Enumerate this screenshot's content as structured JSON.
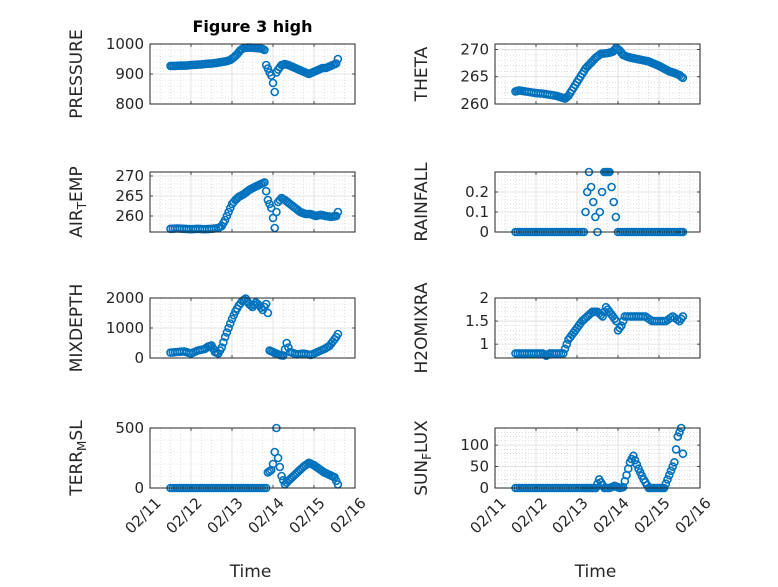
{
  "figure": {
    "title": "Figure 3 high",
    "marker_color": "#0072BD",
    "axes_color": "#262626",
    "grid_color": "#c8c8c8",
    "x_tick_labels": [
      "02/11",
      "02/12",
      "02/13",
      "02/14",
      "02/15",
      "02/16"
    ],
    "xlabel": "Time"
  },
  "chart_data": [
    {
      "type": "scatter",
      "title": "Figure 3 high",
      "ylabel": "PRESSURE",
      "ylim": [
        800,
        1000
      ],
      "yticks": [
        800,
        900,
        1000
      ],
      "xlim": [
        "02/11",
        "02/16"
      ],
      "xlabel": "",
      "grid": "major+minor",
      "series": [
        {
          "x": [
            "02/11 12:00",
            "02/11 15:00",
            "02/11 18:00",
            "02/11 21:00",
            "02/12 00:00",
            "02/12 03:00",
            "02/12 06:00",
            "02/12 09:00",
            "02/12 12:00",
            "02/12 15:00",
            "02/12 18:00",
            "02/12 21:00",
            "02/12 23:00",
            "02/13 01:00",
            "02/13 03:00",
            "02/13 05:00",
            "02/13 07:00",
            "02/13 09:00",
            "02/13 11:00",
            "02/13 13:00",
            "02/13 15:00",
            "02/13 17:00",
            "02/13 18:00",
            "02/13 19:00",
            "02/13 20:00",
            "02/13 21:00",
            "02/13 22:00",
            "02/13 23:00",
            "02/14 00:00",
            "02/14 01:00",
            "02/14 02:00",
            "02/14 03:00",
            "02/14 05:00",
            "02/14 07:00",
            "02/14 09:00",
            "02/14 11:00",
            "02/14 13:00",
            "02/14 15:00",
            "02/14 17:00",
            "02/14 19:00",
            "02/14 21:00",
            "02/14 23:00",
            "02/15 01:00",
            "02/15 03:00",
            "02/15 05:00",
            "02/15 07:00",
            "02/15 09:00",
            "02/15 11:00",
            "02/15 13:00",
            "02/15 14:00"
          ],
          "y": [
            927,
            927,
            928,
            928,
            930,
            931,
            932,
            934,
            935,
            937,
            940,
            943,
            947,
            955,
            966,
            980,
            987,
            988,
            988,
            987,
            986,
            985,
            983,
            980,
            930,
            918,
            905,
            895,
            870,
            840,
            905,
            915,
            930,
            933,
            930,
            925,
            920,
            915,
            910,
            905,
            900,
            905,
            910,
            915,
            920,
            920,
            925,
            930,
            935,
            950
          ]
        }
      ]
    },
    {
      "type": "scatter",
      "ylabel": "THETA",
      "ylim": [
        260,
        271
      ],
      "yticks": [
        260,
        265,
        270
      ],
      "xlim": [
        "02/11",
        "02/16"
      ],
      "grid": "major+minor",
      "series": [
        {
          "x": [
            "02/11 12:00",
            "02/11 14:00",
            "02/11 16:00",
            "02/11 20:00",
            "02/12 00:00",
            "02/12 04:00",
            "02/12 08:00",
            "02/12 12:00",
            "02/12 15:00",
            "02/12 17:00",
            "02/12 19:00",
            "02/12 21:00",
            "02/12 23:00",
            "02/13 01:00",
            "02/13 03:00",
            "02/13 05:00",
            "02/13 08:00",
            "02/13 11:00",
            "02/13 14:00",
            "02/13 17:00",
            "02/13 19:00",
            "02/13 21:00",
            "02/13 23:00",
            "02/14 01:00",
            "02/14 03:00",
            "02/14 06:00",
            "02/14 09:00",
            "02/14 12:00",
            "02/14 15:00",
            "02/14 18:00",
            "02/14 21:00",
            "02/15 00:00",
            "02/15 03:00",
            "02/15 06:00",
            "02/15 09:00",
            "02/15 12:00",
            "02/15 13:00",
            "02/15 14:00"
          ],
          "y": [
            262.3,
            262.5,
            262.4,
            262.2,
            262.0,
            261.9,
            261.7,
            261.5,
            261.2,
            261.0,
            261.5,
            262.5,
            263.5,
            264.5,
            265.5,
            266.5,
            267.5,
            268.5,
            269.2,
            269.3,
            269.4,
            269.6,
            270.3,
            269.8,
            269.0,
            268.6,
            268.4,
            268.2,
            268.0,
            267.8,
            267.4,
            267.0,
            266.5,
            266.0,
            265.7,
            265.3,
            265.0,
            264.8
          ]
        }
      ]
    },
    {
      "type": "scatter",
      "ylabel": "AIR_TEMP",
      "ylim": [
        256,
        271
      ],
      "yticks": [
        260,
        265,
        270
      ],
      "xlim": [
        "02/11",
        "02/16"
      ],
      "grid": "major+minor",
      "series": [
        {
          "x": [
            "02/11 12:00",
            "02/11 16:00",
            "02/11 20:00",
            "02/12 00:00",
            "02/12 04:00",
            "02/12 08:00",
            "02/12 12:00",
            "02/12 16:00",
            "02/12 18:00",
            "02/12 20:00",
            "02/12 22:00",
            "02/13 00:00",
            "02/13 02:00",
            "02/13 04:00",
            "02/13 07:00",
            "02/13 10:00",
            "02/13 13:00",
            "02/13 16:00",
            "02/13 19:00",
            "02/13 21:00",
            "02/13 22:00",
            "02/13 23:00",
            "02/14 00:00",
            "02/14 01:00",
            "02/14 02:00",
            "02/14 03:00",
            "02/14 05:00",
            "02/14 07:00",
            "02/14 10:00",
            "02/14 13:00",
            "02/14 16:00",
            "02/14 19:00",
            "02/14 22:00",
            "02/15 01:00",
            "02/15 04:00",
            "02/15 07:00",
            "02/15 10:00",
            "02/15 13:00",
            "02/15 14:00"
          ],
          "y": [
            256.8,
            256.9,
            256.8,
            256.7,
            256.8,
            256.7,
            256.8,
            257.0,
            257.5,
            259.0,
            261.0,
            263.0,
            264.0,
            264.8,
            265.5,
            266.5,
            267.2,
            267.8,
            268.4,
            264.0,
            263.0,
            262.0,
            259.5,
            257.0,
            261.0,
            263.5,
            264.5,
            264.0,
            263.0,
            262.0,
            261.0,
            260.5,
            260.5,
            260.0,
            260.3,
            260.0,
            259.8,
            260.0,
            261.0
          ]
        }
      ]
    },
    {
      "type": "scatter",
      "ylabel": "RAINFALL",
      "ylim": [
        0,
        0.3
      ],
      "yticks": [
        0,
        0.1,
        0.2
      ],
      "xlim": [
        "02/11",
        "02/16"
      ],
      "grid": "major+minor",
      "series": [
        {
          "x": [
            "02/11 12:00",
            "02/11 16:00",
            "02/11 20:00",
            "02/12 00:00",
            "02/12 04:00",
            "02/12 08:00",
            "02/12 12:00",
            "02/12 16:00",
            "02/12 20:00",
            "02/13 00:00",
            "02/13 04:00",
            "02/13 07:00",
            "02/13 12:00",
            "02/13 16:00",
            "02/13 19:00",
            "02/14 00:00",
            "02/14 04:00",
            "02/14 08:00",
            "02/14 12:00",
            "02/14 16:00",
            "02/14 20:00",
            "02/15 00:00",
            "02/15 04:00",
            "02/15 08:00",
            "02/15 12:00",
            "02/15 14:00"
          ],
          "y": [
            0,
            0,
            0,
            0,
            0,
            0,
            0,
            0,
            0,
            0,
            0,
            0.3,
            0,
            0.3,
            0.3,
            0,
            0,
            0,
            0,
            0,
            0,
            0,
            0,
            0,
            0,
            0
          ]
        }
      ]
    },
    {
      "type": "scatter",
      "ylabel": "MIXDEPTH",
      "ylim": [
        0,
        2000
      ],
      "yticks": [
        0,
        1000,
        2000
      ],
      "xlim": [
        "02/11",
        "02/16"
      ],
      "grid": "major+minor",
      "series": [
        {
          "x": [
            "02/11 12:00",
            "02/11 16:00",
            "02/11 20:00",
            "02/12 00:00",
            "02/12 04:00",
            "02/12 08:00",
            "02/12 10:00",
            "02/12 12:00",
            "02/12 14:00",
            "02/12 16:00",
            "02/12 18:00",
            "02/12 20:00",
            "02/12 22:00",
            "02/13 00:00",
            "02/13 02:00",
            "02/13 04:00",
            "02/13 06:00",
            "02/13 08:00",
            "02/13 10:00",
            "02/13 12:00",
            "02/13 14:00",
            "02/13 16:00",
            "02/13 18:00",
            "02/13 20:00",
            "02/13 21:00",
            "02/13 22:00",
            "02/14 00:00",
            "02/14 02:00",
            "02/14 04:00",
            "02/14 06:00",
            "02/14 08:00",
            "02/14 10:00",
            "02/14 14:00",
            "02/14 18:00",
            "02/14 22:00",
            "02/15 02:00",
            "02/15 06:00",
            "02/15 09:00",
            "02/15 11:00",
            "02/15 13:00",
            "02/15 14:00"
          ],
          "y": [
            180,
            200,
            220,
            150,
            250,
            300,
            380,
            420,
            200,
            150,
            350,
            700,
            1000,
            1300,
            1550,
            1750,
            1900,
            1980,
            1800,
            1700,
            1850,
            1750,
            1600,
            1800,
            1500,
            250,
            200,
            150,
            100,
            80,
            500,
            200,
            120,
            150,
            100,
            200,
            300,
            400,
            550,
            700,
            800
          ]
        }
      ]
    },
    {
      "type": "scatter",
      "ylabel": "H2OMIXRA",
      "ylim": [
        0.7,
        2
      ],
      "yticks": [
        1,
        1.5,
        2
      ],
      "xlim": [
        "02/11",
        "02/16"
      ],
      "grid": "major+minor",
      "series": [
        {
          "x": [
            "02/11 12:00",
            "02/11 16:00",
            "02/11 20:00",
            "02/12 00:00",
            "02/12 04:00",
            "02/12 06:00",
            "02/12 08:00",
            "02/12 12:00",
            "02/12 16:00",
            "02/12 19:00",
            "02/12 21:00",
            "02/12 23:00",
            "02/13 01:00",
            "02/13 03:00",
            "02/13 06:00",
            "02/13 09:00",
            "02/13 12:00",
            "02/13 15:00",
            "02/13 17:00",
            "02/13 19:00",
            "02/13 21:00",
            "02/13 23:00",
            "02/14 00:00",
            "02/14 02:00",
            "02/14 04:00",
            "02/14 08:00",
            "02/14 12:00",
            "02/14 16:00",
            "02/14 20:00",
            "02/15 00:00",
            "02/15 04:00",
            "02/15 08:00",
            "02/15 12:00",
            "02/15 14:00"
          ],
          "y": [
            0.8,
            0.8,
            0.8,
            0.8,
            0.8,
            0.75,
            0.8,
            0.8,
            0.8,
            1.1,
            1.2,
            1.3,
            1.4,
            1.5,
            1.6,
            1.7,
            1.7,
            1.6,
            1.8,
            1.7,
            1.6,
            1.5,
            1.3,
            1.4,
            1.6,
            1.6,
            1.6,
            1.6,
            1.5,
            1.5,
            1.5,
            1.6,
            1.5,
            1.6
          ]
        }
      ]
    },
    {
      "type": "scatter",
      "ylabel": "TERR_MSL",
      "ylim": [
        0,
        500
      ],
      "yticks": [
        0,
        500
      ],
      "xlim": [
        "02/11",
        "02/16"
      ],
      "xlabel": "Time",
      "grid": "major+minor",
      "series": [
        {
          "x": [
            "02/11 12:00",
            "02/11 16:00",
            "02/11 20:00",
            "02/12 00:00",
            "02/12 04:00",
            "02/12 08:00",
            "02/12 12:00",
            "02/12 16:00",
            "02/12 20:00",
            "02/13 00:00",
            "02/13 04:00",
            "02/13 08:00",
            "02/13 12:00",
            "02/13 16:00",
            "02/13 20:00",
            "02/13 21:00",
            "02/13 23:00",
            "02/14 00:00",
            "02/14 01:00",
            "02/14 02:00",
            "02/14 03:00",
            "02/14 05:00",
            "02/14 07:00",
            "02/14 09:00",
            "02/14 12:00",
            "02/14 15:00",
            "02/14 18:00",
            "02/14 21:00",
            "02/15 00:00",
            "02/15 03:00",
            "02/15 06:00",
            "02/15 09:00",
            "02/15 12:00",
            "02/15 14:00"
          ],
          "y": [
            0,
            0,
            0,
            0,
            0,
            0,
            0,
            0,
            0,
            0,
            0,
            0,
            0,
            0,
            0,
            130,
            150,
            200,
            300,
            500,
            250,
            100,
            30,
            60,
            100,
            140,
            180,
            210,
            190,
            160,
            130,
            110,
            90,
            30
          ]
        }
      ]
    },
    {
      "type": "scatter",
      "ylabel": "SUN_FLUX",
      "ylim": [
        0,
        140
      ],
      "yticks": [
        0,
        50,
        100
      ],
      "xlim": [
        "02/11",
        "02/16"
      ],
      "xlabel": "Time",
      "grid": "major+minor",
      "series": [
        {
          "x": [
            "02/11 12:00",
            "02/11 16:00",
            "02/11 20:00",
            "02/12 00:00",
            "02/12 04:00",
            "02/12 08:00",
            "02/12 12:00",
            "02/12 16:00",
            "02/12 20:00",
            "02/13 00:00",
            "02/13 04:00",
            "02/13 07:00",
            "02/13 09:00",
            "02/13 11:00",
            "02/13 13:00",
            "02/13 16:00",
            "02/13 19:00",
            "02/13 22:00",
            "02/14 01:00",
            "02/14 03:00",
            "02/14 05:00",
            "02/14 07:00",
            "02/14 09:00",
            "02/14 12:00",
            "02/14 15:00",
            "02/14 18:00",
            "02/14 21:00",
            "02/15 00:00",
            "02/15 03:00",
            "02/15 05:00",
            "02/15 07:00",
            "02/15 09:00",
            "02/15 11:00",
            "02/15 13:00",
            "02/15 14:00"
          ],
          "y": [
            0,
            0,
            0,
            0,
            0,
            0,
            0,
            0,
            0,
            0,
            0,
            0,
            0,
            0,
            20,
            0,
            0,
            5,
            0,
            2,
            30,
            60,
            75,
            45,
            20,
            0,
            0,
            0,
            0,
            20,
            40,
            60,
            120,
            140,
            80
          ]
        }
      ]
    }
  ]
}
